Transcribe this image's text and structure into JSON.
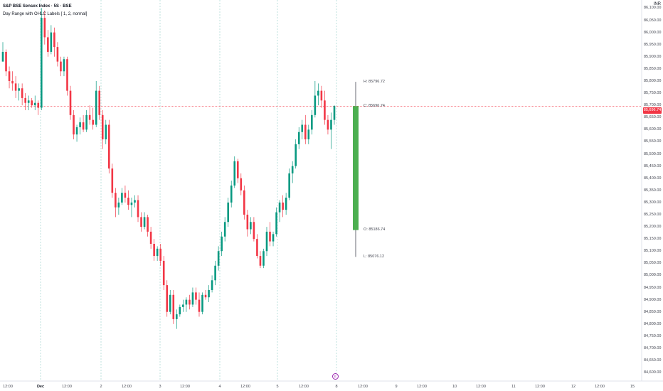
{
  "header": {
    "title": "S&P BSE Sensex Index · 5S · BSE",
    "indicator": "Day Range with OHLC Labels [ 1, 2, normal]",
    "currency": "INR"
  },
  "price_tag": "85,696.74",
  "ohlc_labels": {
    "high": "H: 85796.72",
    "close": "C: 85696.74",
    "open": "O: 85186.74",
    "low": "L: 85076.12"
  },
  "event_marker": "E",
  "colors": {
    "up": "#089981",
    "down": "#f23645",
    "range_body": "#4caf50",
    "price_line": "#f23645"
  },
  "chart_data": {
    "type": "candlestick",
    "y_ticks": [
      "86,100.00",
      "86,050.00",
      "86,000.00",
      "85,950.00",
      "85,900.00",
      "85,850.00",
      "85,800.00",
      "85,750.00",
      "85,700.00",
      "85,650.00",
      "85,600.00",
      "85,550.00",
      "85,500.00",
      "85,450.00",
      "85,400.00",
      "85,350.00",
      "85,300.00",
      "85,250.00",
      "85,200.00",
      "85,150.00",
      "85,100.00",
      "85,050.00",
      "85,000.00",
      "84,950.00",
      "84,900.00",
      "84,850.00",
      "84,800.00",
      "84,750.00",
      "84,700.00",
      "84,650.00",
      "84,600.00"
    ],
    "x_ticks": [
      "12:00",
      "Dec",
      "12:00",
      "2",
      "12:00",
      "3",
      "12:00",
      "4",
      "12:00",
      "5",
      "12:00",
      "8",
      "12:00",
      "9",
      "12:00",
      "10",
      "12:00",
      "11",
      "12:00",
      "12",
      "12:00",
      "15"
    ],
    "ylim": [
      84580,
      86110
    ],
    "last_price": 85696.74,
    "day_range": {
      "open": 85186.74,
      "high": 85796.72,
      "low": 85076.12,
      "close": 85696.74
    },
    "candles": [
      [
        85880,
        85960,
        85880,
        85920
      ],
      [
        85920,
        85930,
        85820,
        85840
      ],
      [
        85840,
        85860,
        85770,
        85800
      ],
      [
        85800,
        85840,
        85760,
        85790
      ],
      [
        85790,
        85820,
        85730,
        85760
      ],
      [
        85760,
        85790,
        85720,
        85770
      ],
      [
        85770,
        85790,
        85700,
        85730
      ],
      [
        85730,
        85750,
        85680,
        85710
      ],
      [
        85710,
        85740,
        85680,
        85720
      ],
      [
        85720,
        85730,
        85690,
        85700
      ],
      [
        85700,
        85740,
        85680,
        85710
      ],
      [
        85710,
        85720,
        85660,
        85690
      ],
      [
        85690,
        86100,
        85680,
        86060
      ],
      [
        86060,
        86090,
        85950,
        85980
      ],
      [
        85980,
        86010,
        85900,
        85920
      ],
      [
        85920,
        86030,
        85910,
        86000
      ],
      [
        86000,
        86020,
        85900,
        85940
      ],
      [
        85940,
        85960,
        85860,
        85880
      ],
      [
        85880,
        85900,
        85820,
        85840
      ],
      [
        85840,
        85900,
        85820,
        85890
      ],
      [
        85890,
        85900,
        85740,
        85760
      ],
      [
        85760,
        85780,
        85640,
        85660
      ],
      [
        85660,
        85680,
        85560,
        85580
      ],
      [
        85580,
        85620,
        85550,
        85610
      ],
      [
        85610,
        85650,
        85580,
        85630
      ],
      [
        85630,
        85660,
        85590,
        85600
      ],
      [
        85600,
        85680,
        85590,
        85660
      ],
      [
        85660,
        85700,
        85620,
        85640
      ],
      [
        85640,
        85690,
        85600,
        85620
      ],
      [
        85620,
        85800,
        85610,
        85760
      ],
      [
        85760,
        85780,
        85640,
        85660
      ],
      [
        85660,
        85680,
        85520,
        85560
      ],
      [
        85560,
        85640,
        85540,
        85620
      ],
      [
        85620,
        85640,
        85420,
        85440
      ],
      [
        85440,
        85460,
        85320,
        85340
      ],
      [
        85340,
        85360,
        85240,
        85280
      ],
      [
        85280,
        85320,
        85250,
        85300
      ],
      [
        85300,
        85360,
        85290,
        85340
      ],
      [
        85340,
        85370,
        85300,
        85320
      ],
      [
        85320,
        85350,
        85270,
        85290
      ],
      [
        85290,
        85320,
        85240,
        85300
      ],
      [
        85300,
        85330,
        85280,
        85310
      ],
      [
        85310,
        85330,
        85220,
        85240
      ],
      [
        85240,
        85260,
        85180,
        85200
      ],
      [
        85200,
        85260,
        85190,
        85240
      ],
      [
        85240,
        85250,
        85160,
        85180
      ],
      [
        85180,
        85200,
        85110,
        85130
      ],
      [
        85130,
        85150,
        85060,
        85080
      ],
      [
        85080,
        85120,
        85060,
        85110
      ],
      [
        85110,
        85130,
        85040,
        85060
      ],
      [
        85060,
        85080,
        84940,
        84960
      ],
      [
        84960,
        84980,
        84830,
        84850
      ],
      [
        84850,
        84940,
        84840,
        84920
      ],
      [
        84920,
        84940,
        84800,
        84820
      ],
      [
        84820,
        84860,
        84780,
        84840
      ],
      [
        84840,
        84880,
        84830,
        84870
      ],
      [
        84870,
        84900,
        84850,
        84880
      ],
      [
        84880,
        84910,
        84850,
        84900
      ],
      [
        84900,
        84920,
        84860,
        84880
      ],
      [
        84880,
        84950,
        84870,
        84930
      ],
      [
        84930,
        84950,
        84880,
        84900
      ],
      [
        84900,
        84930,
        84830,
        84850
      ],
      [
        84850,
        84930,
        84840,
        84920
      ],
      [
        84920,
        84940,
        84900,
        84910
      ],
      [
        84910,
        84960,
        84890,
        84940
      ],
      [
        84940,
        85000,
        84930,
        84980
      ],
      [
        84980,
        85060,
        84960,
        85040
      ],
      [
        85040,
        85120,
        85020,
        85100
      ],
      [
        85100,
        85180,
        85080,
        85160
      ],
      [
        85160,
        85240,
        85140,
        85220
      ],
      [
        85220,
        85320,
        85200,
        85300
      ],
      [
        85300,
        85390,
        85280,
        85370
      ],
      [
        85370,
        85490,
        85360,
        85470
      ],
      [
        85470,
        85480,
        85380,
        85400
      ],
      [
        85400,
        85420,
        85330,
        85350
      ],
      [
        85350,
        85370,
        85230,
        85250
      ],
      [
        85250,
        85270,
        85160,
        85190
      ],
      [
        85190,
        85240,
        85170,
        85220
      ],
      [
        85220,
        85240,
        85140,
        85150
      ],
      [
        85150,
        85170,
        85070,
        85080
      ],
      [
        85080,
        85100,
        85030,
        85040
      ],
      [
        85040,
        85110,
        85030,
        85100
      ],
      [
        85100,
        85200,
        85080,
        85180
      ],
      [
        85180,
        85220,
        85120,
        85140
      ],
      [
        85140,
        85180,
        85120,
        85170
      ],
      [
        85170,
        85280,
        85160,
        85260
      ],
      [
        85260,
        85310,
        85220,
        85300
      ],
      [
        85300,
        85330,
        85240,
        85270
      ],
      [
        85270,
        85340,
        85250,
        85320
      ],
      [
        85320,
        85440,
        85310,
        85420
      ],
      [
        85420,
        85470,
        85380,
        85450
      ],
      [
        85450,
        85560,
        85440,
        85540
      ],
      [
        85540,
        85610,
        85520,
        85590
      ],
      [
        85590,
        85640,
        85560,
        85620
      ],
      [
        85620,
        85660,
        85540,
        85560
      ],
      [
        85560,
        85620,
        85540,
        85600
      ],
      [
        85600,
        85680,
        85580,
        85660
      ],
      [
        85660,
        85800,
        85650,
        85740
      ],
      [
        85740,
        85790,
        85700,
        85760
      ],
      [
        85760,
        85780,
        85690,
        85720
      ],
      [
        85720,
        85760,
        85620,
        85640
      ],
      [
        85640,
        85660,
        85580,
        85600
      ],
      [
        85600,
        85670,
        85520,
        85640
      ],
      [
        85640,
        85700,
        85620,
        85696.74
      ]
    ]
  }
}
